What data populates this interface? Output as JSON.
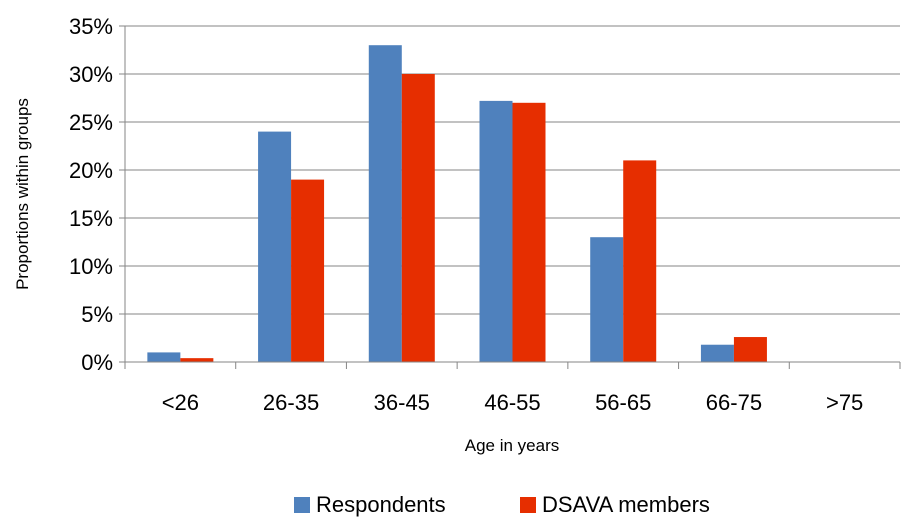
{
  "chart_data": {
    "type": "bar",
    "title": "",
    "xlabel": "Age in years",
    "ylabel": "Proportions within groups",
    "categories": [
      "<26",
      "26-35",
      "36-45",
      "46-55",
      "56-65",
      "66-75",
      ">75"
    ],
    "series": [
      {
        "name": "Respondents",
        "color": "#4f81bd",
        "values": [
          1,
          24,
          33,
          27.2,
          13,
          1.8,
          0
        ]
      },
      {
        "name": "DSAVA members",
        "color": "#e62e00",
        "values": [
          0.4,
          19,
          30,
          27,
          21,
          2.6,
          0
        ]
      }
    ],
    "y_ticks": [
      "0%",
      "5%",
      "10%",
      "15%",
      "20%",
      "25%",
      "30%",
      "35%"
    ],
    "ylim": [
      0,
      35
    ],
    "grid": true,
    "legend_position": "bottom"
  }
}
